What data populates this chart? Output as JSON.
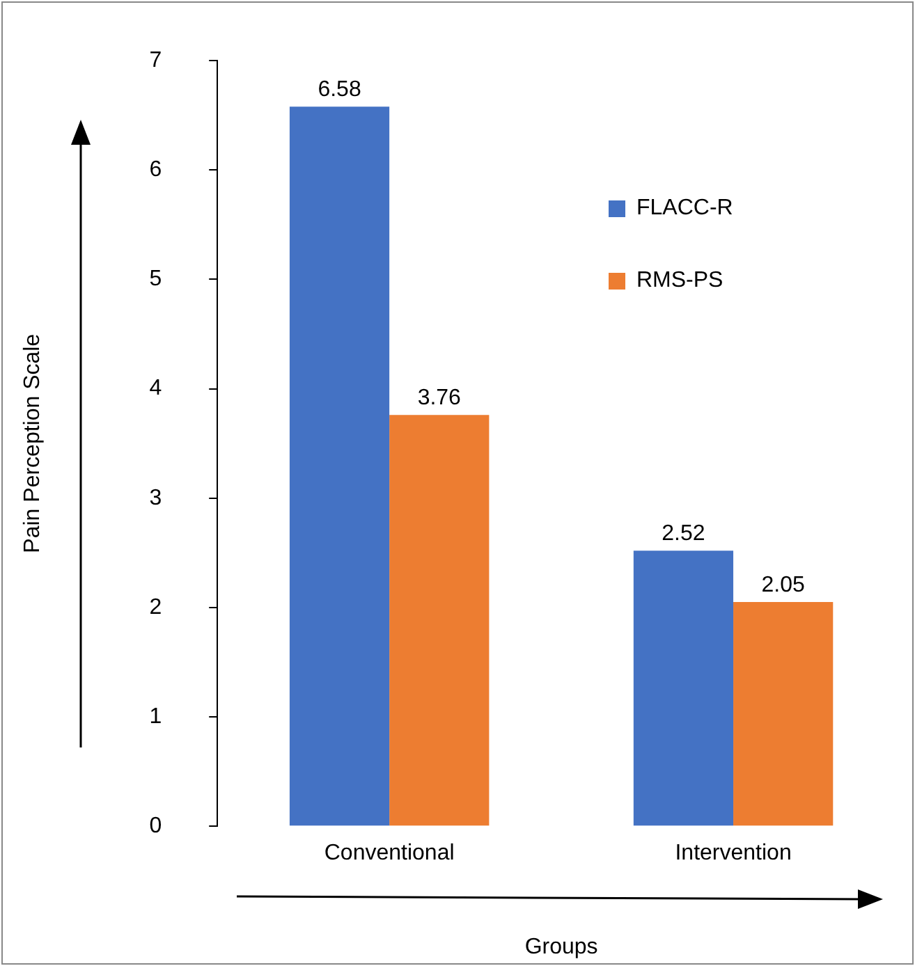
{
  "chart_data": {
    "type": "bar",
    "xlabel": "Groups",
    "ylabel": "Pain Perception Scale",
    "categories": [
      "Conventional",
      "Intervention"
    ],
    "series": [
      {
        "name": "FLACC-R",
        "color": "#4472c4",
        "values": [
          6.58,
          2.52
        ]
      },
      {
        "name": "RMS-PS",
        "color": "#ed7d31",
        "values": [
          3.76,
          2.05
        ]
      }
    ],
    "ylim": [
      0,
      7
    ],
    "yticks": [
      0,
      1,
      2,
      3,
      4,
      5,
      6,
      7
    ],
    "grid": false,
    "legend": "top right",
    "data_labels": true
  }
}
